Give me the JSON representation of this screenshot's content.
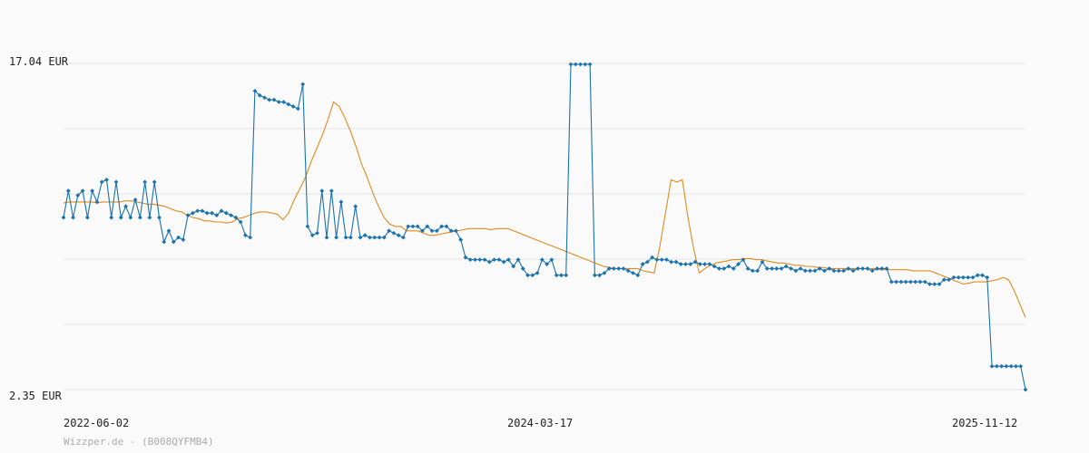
{
  "chart_data": {
    "type": "line",
    "y_range": [
      2.35,
      17.04
    ],
    "y_unit": "EUR",
    "y_labels": [
      "17.04 EUR",
      "2.35 EUR"
    ],
    "grid": true,
    "x_ticks": [
      "2022-06-02",
      "2024-03-17",
      "2025-11-12"
    ],
    "credit": "Wizzper.de - (B008QYFMB4)",
    "colors": {
      "price": "#1a72b0",
      "average": "#e08a1e",
      "grid": "#e2e2e2"
    },
    "series": [
      {
        "key": "price",
        "values": [
          10.1,
          11.3,
          10.1,
          11.1,
          11.3,
          10.1,
          11.3,
          10.8,
          11.7,
          11.8,
          10.1,
          11.7,
          10.1,
          10.6,
          10.1,
          10.9,
          10.1,
          11.7,
          10.1,
          11.7,
          10.1,
          9.0,
          9.5,
          9.0,
          9.2,
          9.1,
          10.2,
          10.3,
          10.4,
          10.4,
          10.3,
          10.3,
          10.2,
          10.4,
          10.3,
          10.2,
          10.1,
          9.9,
          9.3,
          9.2,
          15.8,
          15.6,
          15.5,
          15.4,
          15.4,
          15.3,
          15.3,
          15.2,
          15.1,
          15.0,
          16.1,
          9.7,
          9.3,
          9.4,
          11.3,
          9.2,
          11.3,
          9.2,
          10.8,
          9.2,
          9.2,
          10.6,
          9.2,
          9.3,
          9.2,
          9.2,
          9.2,
          9.2,
          9.5,
          9.4,
          9.3,
          9.2,
          9.7,
          9.7,
          9.7,
          9.5,
          9.7,
          9.5,
          9.5,
          9.7,
          9.7,
          9.5,
          9.5,
          9.1,
          8.3,
          8.2,
          8.2,
          8.2,
          8.2,
          8.1,
          8.2,
          8.2,
          8.1,
          8.2,
          7.9,
          8.2,
          7.8,
          7.5,
          7.5,
          7.6,
          8.2,
          8.0,
          8.2,
          7.5,
          7.5,
          7.5,
          17.0,
          17.0,
          17.0,
          17.0,
          17.0,
          7.5,
          7.5,
          7.6,
          7.8,
          7.8,
          7.8,
          7.8,
          7.7,
          7.6,
          7.5,
          8.0,
          8.1,
          8.3,
          8.2,
          8.2,
          8.2,
          8.1,
          8.1,
          8.0,
          8.0,
          8.0,
          8.1,
          8.0,
          8.0,
          8.0,
          7.9,
          7.8,
          7.8,
          7.9,
          7.8,
          8.0,
          8.2,
          7.8,
          7.7,
          7.7,
          8.1,
          7.8,
          7.8,
          7.8,
          7.8,
          7.9,
          7.8,
          7.7,
          7.8,
          7.7,
          7.7,
          7.7,
          7.8,
          7.7,
          7.8,
          7.7,
          7.7,
          7.7,
          7.8,
          7.7,
          7.8,
          7.8,
          7.8,
          7.7,
          7.8,
          7.8,
          7.8,
          7.2,
          7.2,
          7.2,
          7.2,
          7.2,
          7.2,
          7.2,
          7.2,
          7.1,
          7.1,
          7.1,
          7.3,
          7.3,
          7.4,
          7.4,
          7.4,
          7.4,
          7.4,
          7.5,
          7.5,
          7.4,
          3.4,
          3.4,
          3.4,
          3.4,
          3.4,
          3.4,
          3.4,
          2.35
        ]
      },
      {
        "key": "average",
        "values": [
          10.75,
          10.8,
          10.8,
          10.8,
          10.8,
          10.8,
          10.75,
          10.8,
          10.8,
          10.8,
          10.8,
          10.85,
          10.85,
          10.8,
          10.75,
          10.7,
          10.7,
          10.65,
          10.6,
          10.5,
          10.4,
          10.35,
          10.2,
          10.1,
          10.05,
          9.95,
          9.95,
          9.9,
          9.9,
          9.85,
          9.9,
          10.05,
          10.1,
          10.2,
          10.3,
          10.35,
          10.35,
          10.3,
          10.25,
          10.0,
          10.3,
          10.9,
          11.4,
          11.9,
          12.6,
          13.2,
          13.8,
          14.5,
          15.3,
          15.1,
          14.6,
          14.0,
          13.3,
          12.5,
          11.9,
          11.2,
          10.6,
          10.1,
          9.8,
          9.7,
          9.7,
          9.5,
          9.5,
          9.5,
          9.4,
          9.3,
          9.3,
          9.35,
          9.4,
          9.45,
          9.5,
          9.55,
          9.6,
          9.6,
          9.6,
          9.6,
          9.55,
          9.6,
          9.6,
          9.6,
          9.5,
          9.4,
          9.3,
          9.2,
          9.1,
          9.0,
          8.9,
          8.8,
          8.7,
          8.6,
          8.5,
          8.4,
          8.3,
          8.2,
          8.1,
          8.0,
          7.9,
          7.85,
          7.8,
          7.8,
          7.8,
          7.8,
          7.8,
          7.7,
          7.65,
          7.6,
          8.8,
          10.3,
          11.8,
          11.7,
          11.8,
          10.1,
          8.7,
          7.6,
          7.8,
          7.95,
          8.05,
          8.1,
          8.15,
          8.2,
          8.2,
          8.25,
          8.25,
          8.2,
          8.2,
          8.15,
          8.1,
          8.05,
          8.05,
          8.0,
          7.95,
          7.95,
          7.9,
          7.9,
          7.85,
          7.85,
          7.8,
          7.8,
          7.8,
          7.8,
          7.8,
          7.8,
          7.8,
          7.8,
          7.8,
          7.75,
          7.75,
          7.75,
          7.75,
          7.75,
          7.75,
          7.7,
          7.7,
          7.7,
          7.7,
          7.6,
          7.5,
          7.4,
          7.3,
          7.2,
          7.1,
          7.15,
          7.2,
          7.2,
          7.2,
          7.25,
          7.3,
          7.4,
          7.3,
          6.8,
          6.2,
          5.6
        ]
      }
    ]
  }
}
